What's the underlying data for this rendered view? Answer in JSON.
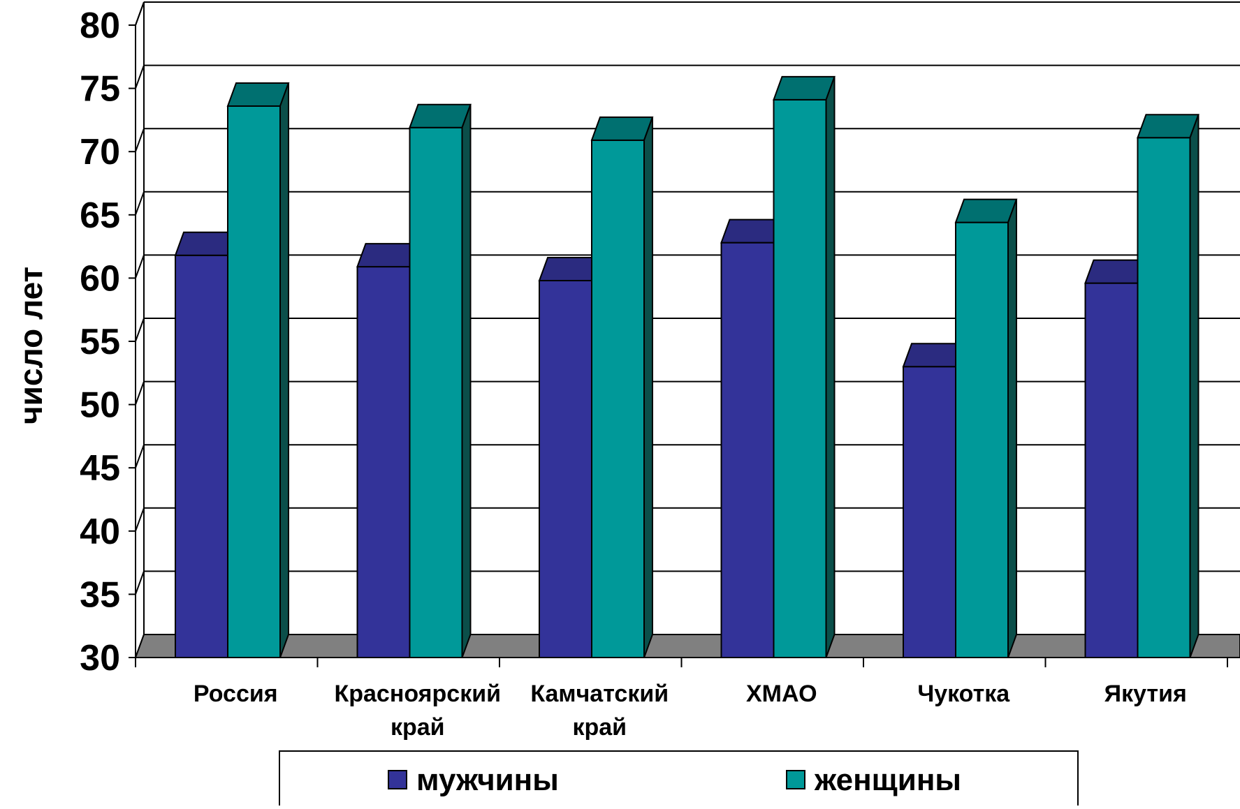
{
  "chart_data": {
    "type": "bar",
    "title": "",
    "xlabel": "",
    "ylabel": "число лет",
    "ylim": [
      30,
      80
    ],
    "yticks": [
      30,
      35,
      40,
      45,
      50,
      55,
      60,
      65,
      70,
      75,
      80
    ],
    "categories": [
      [
        "Россия"
      ],
      [
        "Красноярский",
        "край"
      ],
      [
        "Камчатский",
        "край"
      ],
      [
        "ХМАО"
      ],
      [
        "Чукотка"
      ],
      [
        "Якутия"
      ]
    ],
    "series": [
      {
        "name": "мужчины",
        "values": [
          61.8,
          60.9,
          59.8,
          62.8,
          53.0,
          59.6
        ]
      },
      {
        "name": "женщины",
        "values": [
          73.6,
          71.9,
          70.9,
          74.1,
          64.4,
          71.1
        ]
      }
    ],
    "colors": {
      "мужчины_front": "#333399",
      "мужчины_side": "#1f1f6b",
      "мужчины_top": "#2b2b80",
      "женщины_front": "#009999",
      "женщины_side": "#0b4f4a",
      "женщины_top": "#007070",
      "floor": "#808080",
      "grid": "#000000"
    },
    "grid": true,
    "style": "3d-clustered-column",
    "legend": "bottom"
  }
}
